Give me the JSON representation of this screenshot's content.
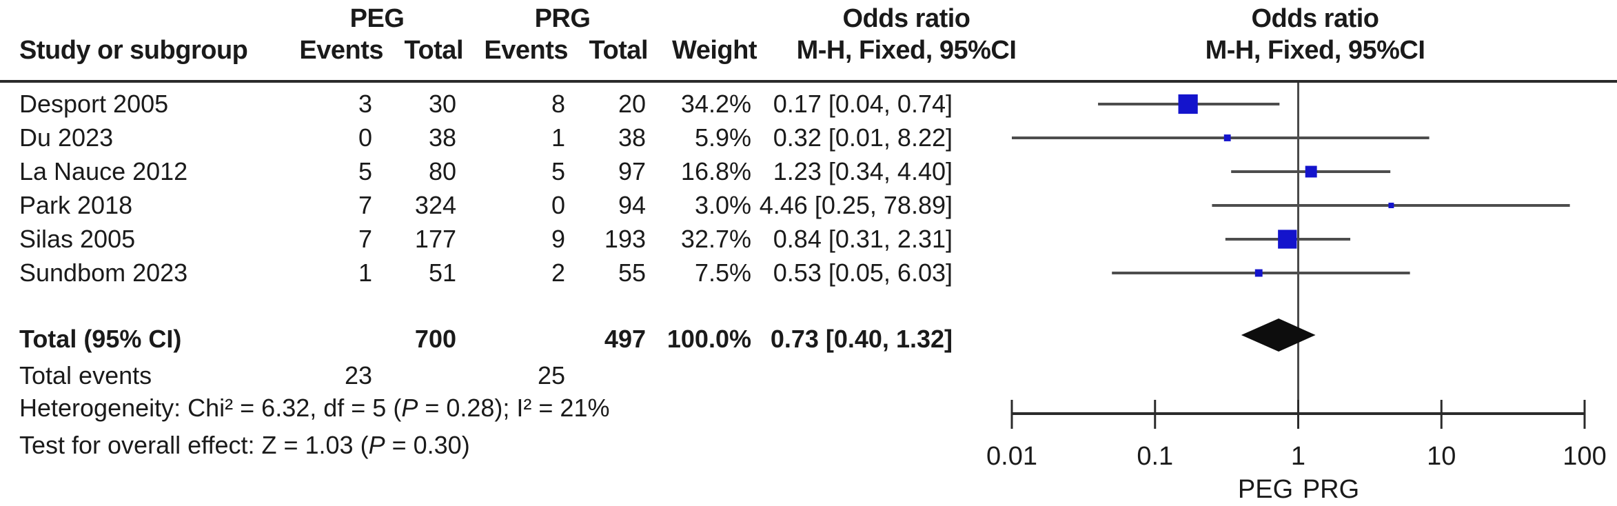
{
  "header": {
    "col_study": "Study or subgroup",
    "group1_name": "PEG",
    "group1_events": "Events",
    "group1_total": "Total",
    "group2_name": "PRG",
    "group2_events": "Events",
    "group2_total": "Total",
    "col_weight": "Weight",
    "or_col_text_line1": "Odds ratio",
    "or_col_text_line2": "M-H, Fixed, 95%CI",
    "or_col_plot_line1": "Odds ratio",
    "or_col_plot_line2": "M-H, Fixed, 95%CI"
  },
  "rows": [
    {
      "study": "Desport 2005",
      "peg_events": "3",
      "peg_total": "30",
      "prg_events": "8",
      "prg_total": "20",
      "weight": "34.2%",
      "or_ci": "0.17 [0.04, 0.74]"
    },
    {
      "study": "Du 2023",
      "peg_events": "0",
      "peg_total": "38",
      "prg_events": "1",
      "prg_total": "38",
      "weight": "5.9%",
      "or_ci": "0.32 [0.01, 8.22]"
    },
    {
      "study": "La Nauce 2012",
      "peg_events": "5",
      "peg_total": "80",
      "prg_events": "5",
      "prg_total": "97",
      "weight": "16.8%",
      "or_ci": "1.23 [0.34, 4.40]"
    },
    {
      "study": "Park 2018",
      "peg_events": "7",
      "peg_total": "324",
      "prg_events": "0",
      "prg_total": "94",
      "weight": "3.0%",
      "or_ci": "4.46 [0.25, 78.89]"
    },
    {
      "study": "Silas 2005",
      "peg_events": "7",
      "peg_total": "177",
      "prg_events": "9",
      "prg_total": "193",
      "weight": "32.7%",
      "or_ci": "0.84 [0.31, 2.31]"
    },
    {
      "study": "Sundbom 2023",
      "peg_events": "1",
      "peg_total": "51",
      "prg_events": "2",
      "prg_total": "55",
      "weight": "7.5%",
      "or_ci": "0.53 [0.05, 6.03]"
    }
  ],
  "total_row": {
    "label": "Total (95% CI)",
    "peg_total": "700",
    "prg_total": "497",
    "weight": "100.0%",
    "or_ci": "0.73 [0.40, 1.32]"
  },
  "total_events": {
    "label": "Total events",
    "peg": "23",
    "prg": "25"
  },
  "heterogeneity": {
    "prefix": "Heterogeneity: Chi² = 6.32, df = 5 (",
    "p_italic": "P",
    "suffix": " = 0.28); I² = 21%"
  },
  "overall_effect": {
    "prefix": "Test for overall effect: Z = 1.03 (",
    "p_italic": "P",
    "suffix": " = 0.30)"
  },
  "axis": {
    "left_group_label": "PEG",
    "right_group_label": "PRG"
  },
  "colors": {
    "marker_blue": "#1414cc",
    "ci_line": "#4d4d4d",
    "frame_line": "#2b2b2b",
    "null_line": "#4a4a4a",
    "diamond": "#0d0d0d",
    "text": "#1a1a1a"
  },
  "chart_data": {
    "type": "forest",
    "effect_measure": "Odds ratio, M-H, Fixed, 95% CI",
    "scale": "log10",
    "x_range": [
      0.01,
      100
    ],
    "x_ticks": [
      0.01,
      0.1,
      1,
      10,
      100
    ],
    "x_tick_labels": [
      "0.01",
      "0.1",
      "1",
      "10",
      "100"
    ],
    "null_value": 1,
    "group_labels": [
      "PEG",
      "PRG"
    ],
    "studies": [
      {
        "name": "Desport 2005",
        "peg_events": 3,
        "peg_total": 30,
        "prg_events": 8,
        "prg_total": 20,
        "weight_pct": 34.2,
        "or": 0.17,
        "ci_low": 0.04,
        "ci_high": 0.74
      },
      {
        "name": "Du 2023",
        "peg_events": 0,
        "peg_total": 38,
        "prg_events": 1,
        "prg_total": 38,
        "weight_pct": 5.9,
        "or": 0.32,
        "ci_low": 0.01,
        "ci_high": 8.22
      },
      {
        "name": "La Nauce 2012",
        "peg_events": 5,
        "peg_total": 80,
        "prg_events": 5,
        "prg_total": 97,
        "weight_pct": 16.8,
        "or": 1.23,
        "ci_low": 0.34,
        "ci_high": 4.4
      },
      {
        "name": "Park 2018",
        "peg_events": 7,
        "peg_total": 324,
        "prg_events": 0,
        "prg_total": 94,
        "weight_pct": 3.0,
        "or": 4.46,
        "ci_low": 0.25,
        "ci_high": 78.89
      },
      {
        "name": "Silas 2005",
        "peg_events": 7,
        "peg_total": 177,
        "prg_events": 9,
        "prg_total": 193,
        "weight_pct": 32.7,
        "or": 0.84,
        "ci_low": 0.31,
        "ci_high": 2.31
      },
      {
        "name": "Sundbom 2023",
        "peg_events": 1,
        "peg_total": 51,
        "prg_events": 2,
        "prg_total": 55,
        "weight_pct": 7.5,
        "or": 0.53,
        "ci_low": 0.05,
        "ci_high": 6.03
      }
    ],
    "total": {
      "or": 0.73,
      "ci_low": 0.4,
      "ci_high": 1.32,
      "peg_events": 23,
      "peg_total": 700,
      "prg_events": 25,
      "prg_total": 497,
      "weight_pct": 100.0
    },
    "heterogeneity": {
      "chi2": 6.32,
      "df": 5,
      "p": 0.28,
      "i2_pct": 21
    },
    "overall_effect": {
      "z": 1.03,
      "p": 0.3
    }
  }
}
